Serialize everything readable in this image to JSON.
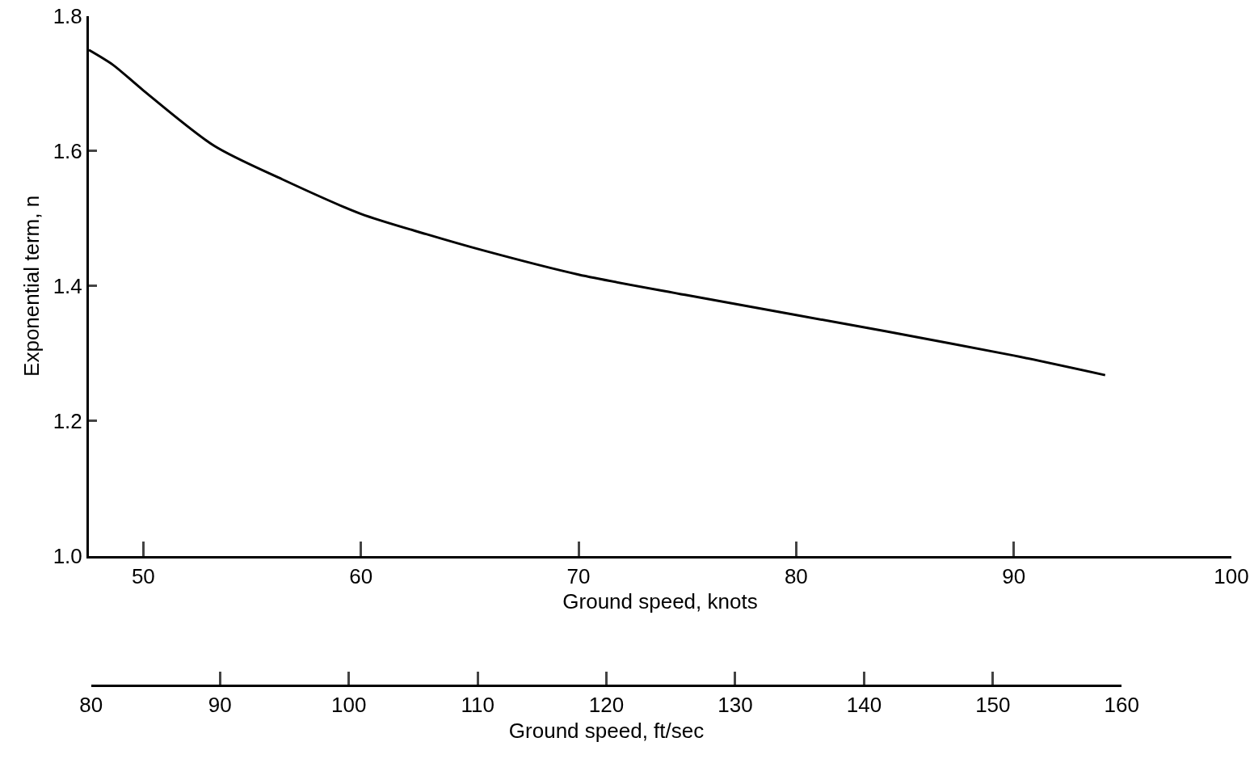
{
  "chart_data": {
    "type": "line",
    "xlabel": "Ground speed, knots",
    "ylabel": "Exponential term, n",
    "x2label": "Ground speed, ft/sec",
    "xlim": [
      47.5,
      100
    ],
    "xticks": [
      50,
      60,
      70,
      80,
      90,
      100
    ],
    "ylim": [
      1.0,
      1.8
    ],
    "yticks": [
      {
        "value": 1.0,
        "label": "1.0"
      },
      {
        "value": 1.2,
        "label": "1.2"
      },
      {
        "value": 1.4,
        "label": "1.4"
      },
      {
        "value": 1.6,
        "label": "1.6"
      },
      {
        "value": 1.8,
        "label": "1.8"
      }
    ],
    "x2lim": [
      80,
      160
    ],
    "x2ticks": [
      80,
      90,
      100,
      110,
      120,
      130,
      140,
      150,
      160
    ],
    "marker": "none",
    "series": [
      {
        "color": "#000000",
        "x": [
          47.5,
          48.6,
          50,
          53.25,
          56.4,
          60,
          63,
          65.6,
          70,
          74.9,
          80,
          84.1,
          90,
          94.2
        ],
        "values": [
          1.75,
          1.728,
          1.69,
          1.608,
          1.558,
          1.507,
          1.477,
          1.453,
          1.417,
          1.387,
          1.357,
          1.333,
          1.297,
          1.268
        ]
      }
    ]
  }
}
